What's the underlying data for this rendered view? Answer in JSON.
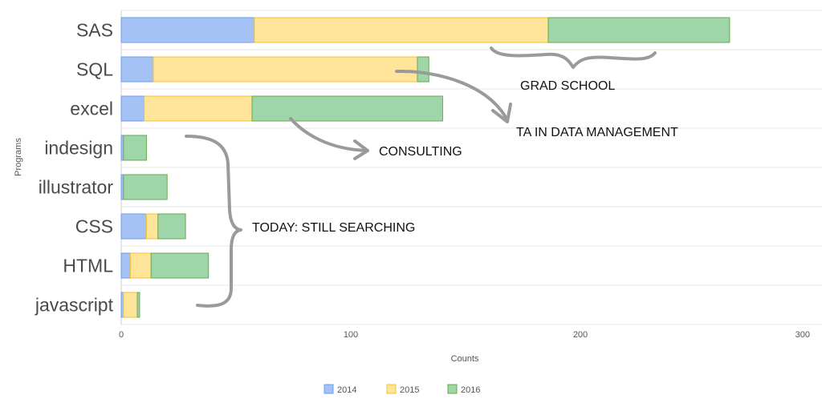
{
  "chart_data": {
    "type": "bar",
    "orientation": "horizontal",
    "stacked": true,
    "categories": [
      "SAS",
      "SQL",
      "excel",
      "indesign",
      "illustrator",
      "CSS",
      "HTML",
      "javascript"
    ],
    "series": [
      {
        "name": "2014",
        "color": "#a4c2f4",
        "values": [
          58,
          14,
          10,
          1,
          1,
          11,
          4,
          1
        ]
      },
      {
        "name": "2015",
        "color": "#ffe599",
        "values": [
          128,
          115,
          47,
          0,
          0,
          5,
          9,
          6
        ]
      },
      {
        "name": "2016",
        "color": "#9fd6a9",
        "values": [
          79,
          5,
          83,
          10,
          19,
          12,
          25,
          1
        ]
      }
    ],
    "xlabel": "Counts",
    "ylabel": "Programs",
    "xlim": [
      0,
      300
    ],
    "xticks": [
      0,
      100,
      200,
      300
    ],
    "grid": true,
    "legend_position": "bottom",
    "annotations": [
      {
        "id": "grad",
        "text": "GRAD SCHOOL"
      },
      {
        "id": "ta",
        "text": "TA IN DATA MANAGEMENT"
      },
      {
        "id": "consult",
        "text": "CONSULTING"
      },
      {
        "id": "today",
        "text": "TODAY: STILL SEARCHING"
      }
    ]
  }
}
